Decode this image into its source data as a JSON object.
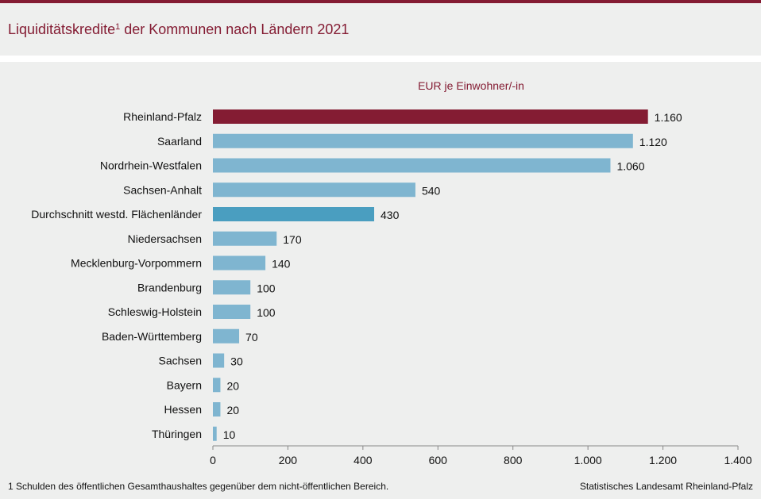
{
  "header": {
    "title": "Liquiditätskredite",
    "title_sup": "1",
    "title_rest": " der Kommunen nach Ländern 2021"
  },
  "footer": {
    "footnote": "1 Schulden des öffentlichen Gesamthaushaltes gegenüber dem nicht-öffentlichen Bereich.",
    "source": "Statistisches Landesamt Rheinland-Pfalz"
  },
  "chart_data": {
    "type": "bar",
    "orientation": "horizontal",
    "title": "Liquiditätskredite der Kommunen nach Ländern 2021",
    "unit_label": "EUR je Einwohner/-in",
    "categories": [
      "Rheinland-Pfalz",
      "Saarland",
      "Nordrhein-Westfalen",
      "Sachsen-Anhalt",
      "Durchschnitt westd. Flächenländer",
      "Niedersachsen",
      "Mecklenburg-Vorpommern",
      "Brandenburg",
      "Schleswig-Holstein",
      "Baden-Württemberg",
      "Sachsen",
      "Bayern",
      "Hessen",
      "Thüringen"
    ],
    "values": [
      1160,
      1120,
      1060,
      540,
      430,
      170,
      140,
      100,
      100,
      70,
      30,
      20,
      20,
      10
    ],
    "value_labels": [
      "1.160",
      "1.120",
      "1.060",
      "540",
      "430",
      "170",
      "140",
      "100",
      "100",
      "70",
      "30",
      "20",
      "20",
      "10"
    ],
    "colors": [
      "#841c33",
      "#7fb5d0",
      "#7fb5d0",
      "#7fb5d0",
      "#4a9ec0",
      "#7fb5d0",
      "#7fb5d0",
      "#7fb5d0",
      "#7fb5d0",
      "#7fb5d0",
      "#7fb5d0",
      "#7fb5d0",
      "#7fb5d0",
      "#7fb5d0"
    ],
    "xlim": [
      0,
      1400
    ],
    "xticks": [
      0,
      200,
      400,
      600,
      800,
      1000,
      1200,
      1400
    ],
    "xtick_labels": [
      "0",
      "200",
      "400",
      "600",
      "800",
      "1.000",
      "1.200",
      "1.400"
    ],
    "grid": false
  }
}
